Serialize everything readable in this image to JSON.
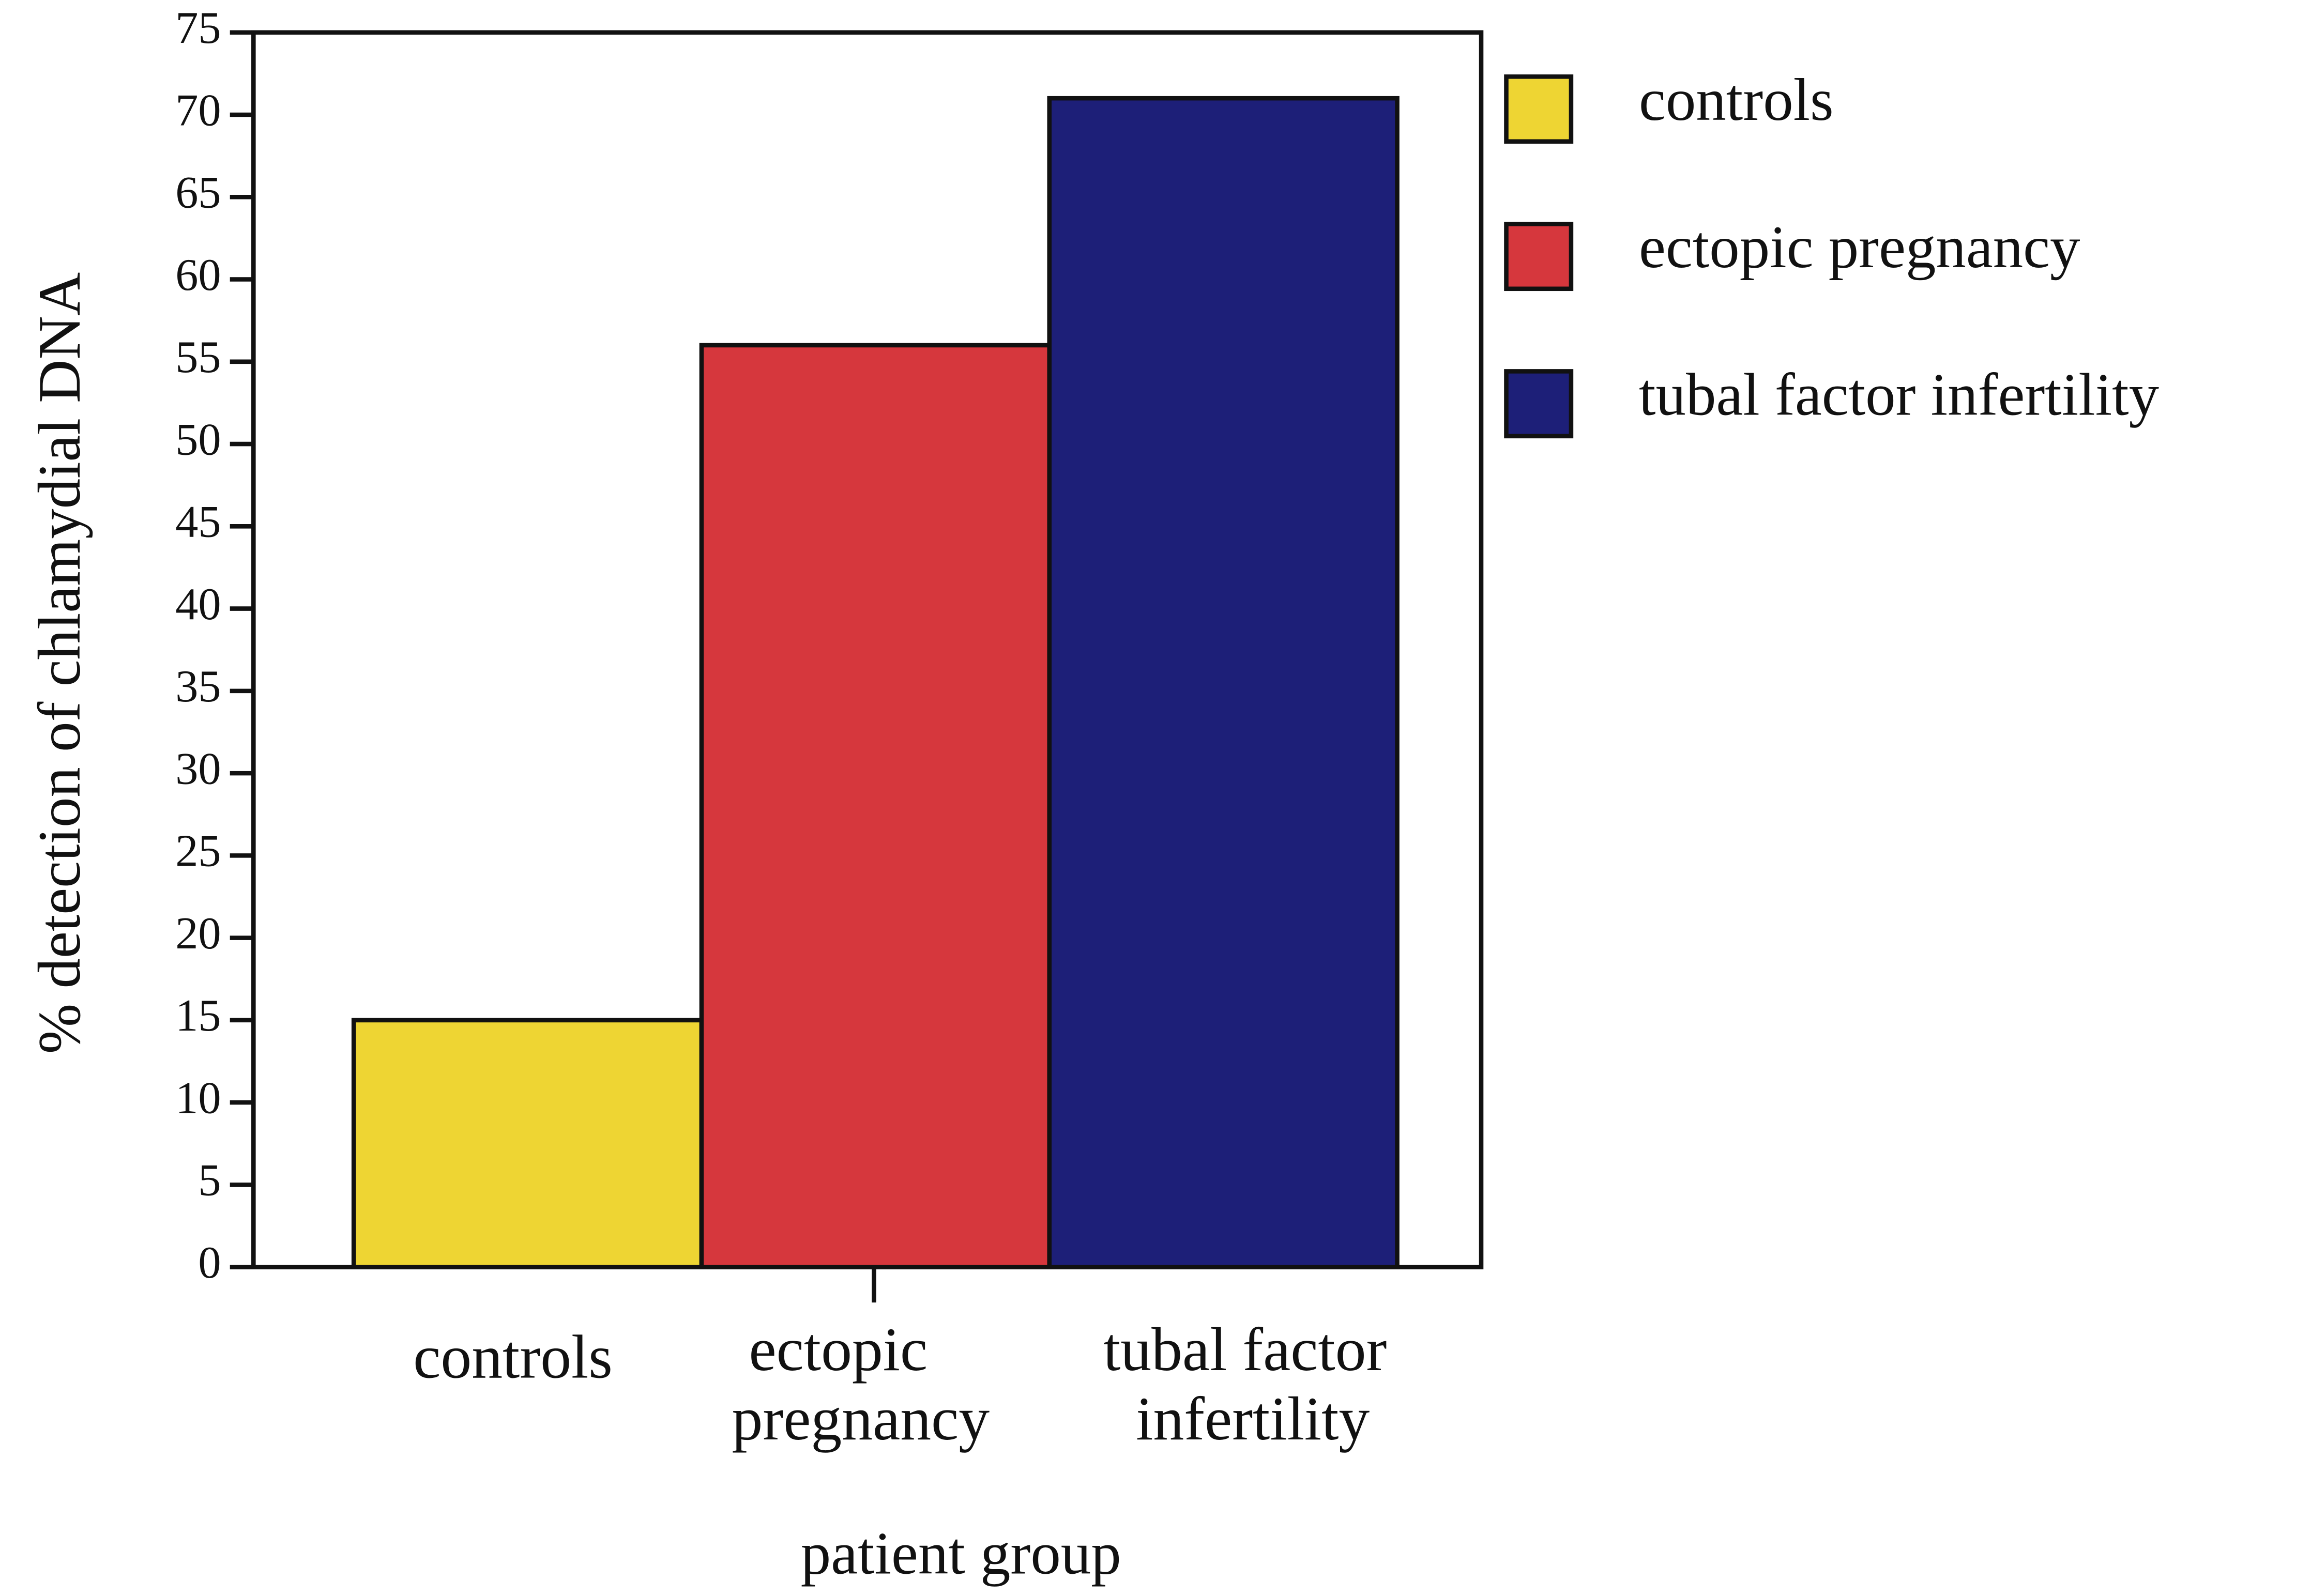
{
  "chart_data": {
    "type": "bar",
    "categories": [
      "controls",
      "ectopic pregnancy",
      "tubal factor infertility"
    ],
    "values": [
      15,
      56,
      71
    ],
    "colors": [
      "#eed533",
      "#d6373d",
      "#1d1f78"
    ],
    "ylim": [
      0,
      75
    ],
    "yticks": [
      0,
      5,
      10,
      15,
      20,
      25,
      30,
      35,
      40,
      45,
      50,
      55,
      60,
      65,
      70,
      75
    ],
    "y_label": "% detection of chlamydial DNA",
    "x_label": "patient group",
    "legend": "right"
  }
}
